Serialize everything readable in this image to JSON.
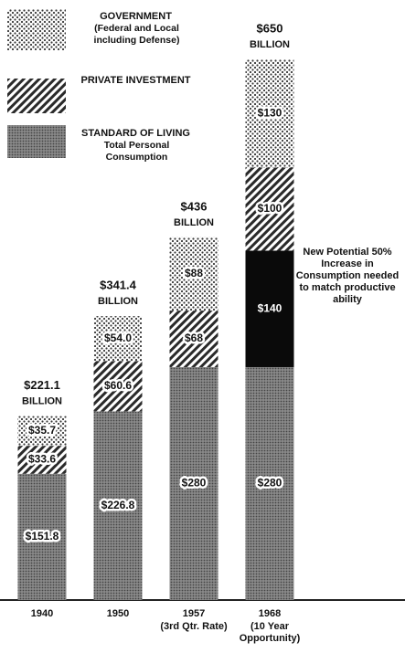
{
  "chart_data": {
    "type": "stacked_bar",
    "categories": [
      "1940",
      "1950",
      "1957",
      "1968"
    ],
    "category_notes": [
      null,
      null,
      "(3rd Qtr. Rate)",
      "(10 Year Opportunity)"
    ],
    "totals": [
      221.1,
      341.4,
      436,
      650
    ],
    "total_labels": [
      "$221.1",
      "$341.4",
      "$436",
      "$650"
    ],
    "total_unit": "BILLION",
    "series": [
      {
        "name": "STANDARD OF LIVING",
        "description": "Total Personal Consumption",
        "color": "#8a8a8a",
        "pattern": "screen",
        "values": [
          151.8,
          226.8,
          280,
          280
        ],
        "value_labels": [
          "$151.8",
          "$226.8",
          "$280",
          "$280"
        ]
      },
      {
        "name": null,
        "color": "#0a0a0a",
        "pattern": "solid",
        "values": [
          null,
          null,
          null,
          140
        ],
        "value_labels": [
          null,
          null,
          null,
          "$140"
        ]
      },
      {
        "name": "PRIVATE INVESTMENT",
        "color": "#2a2a2a",
        "pattern": "hatch",
        "values": [
          33.6,
          60.6,
          68,
          100
        ],
        "value_labels": [
          "$33.6",
          "$60.6",
          "$68",
          "$100"
        ]
      },
      {
        "name": "GOVERNMENT",
        "description": "(Federal and Local including Defense)",
        "color": "#3a3a3a",
        "pattern": "dots",
        "values": [
          35.7,
          54,
          88,
          130
        ],
        "value_labels": [
          "$35.7",
          "$54.0",
          "$88",
          "$130"
        ]
      }
    ],
    "annotation": "New Potential 50% Increase in Consumption needed to match productive ability"
  }
}
